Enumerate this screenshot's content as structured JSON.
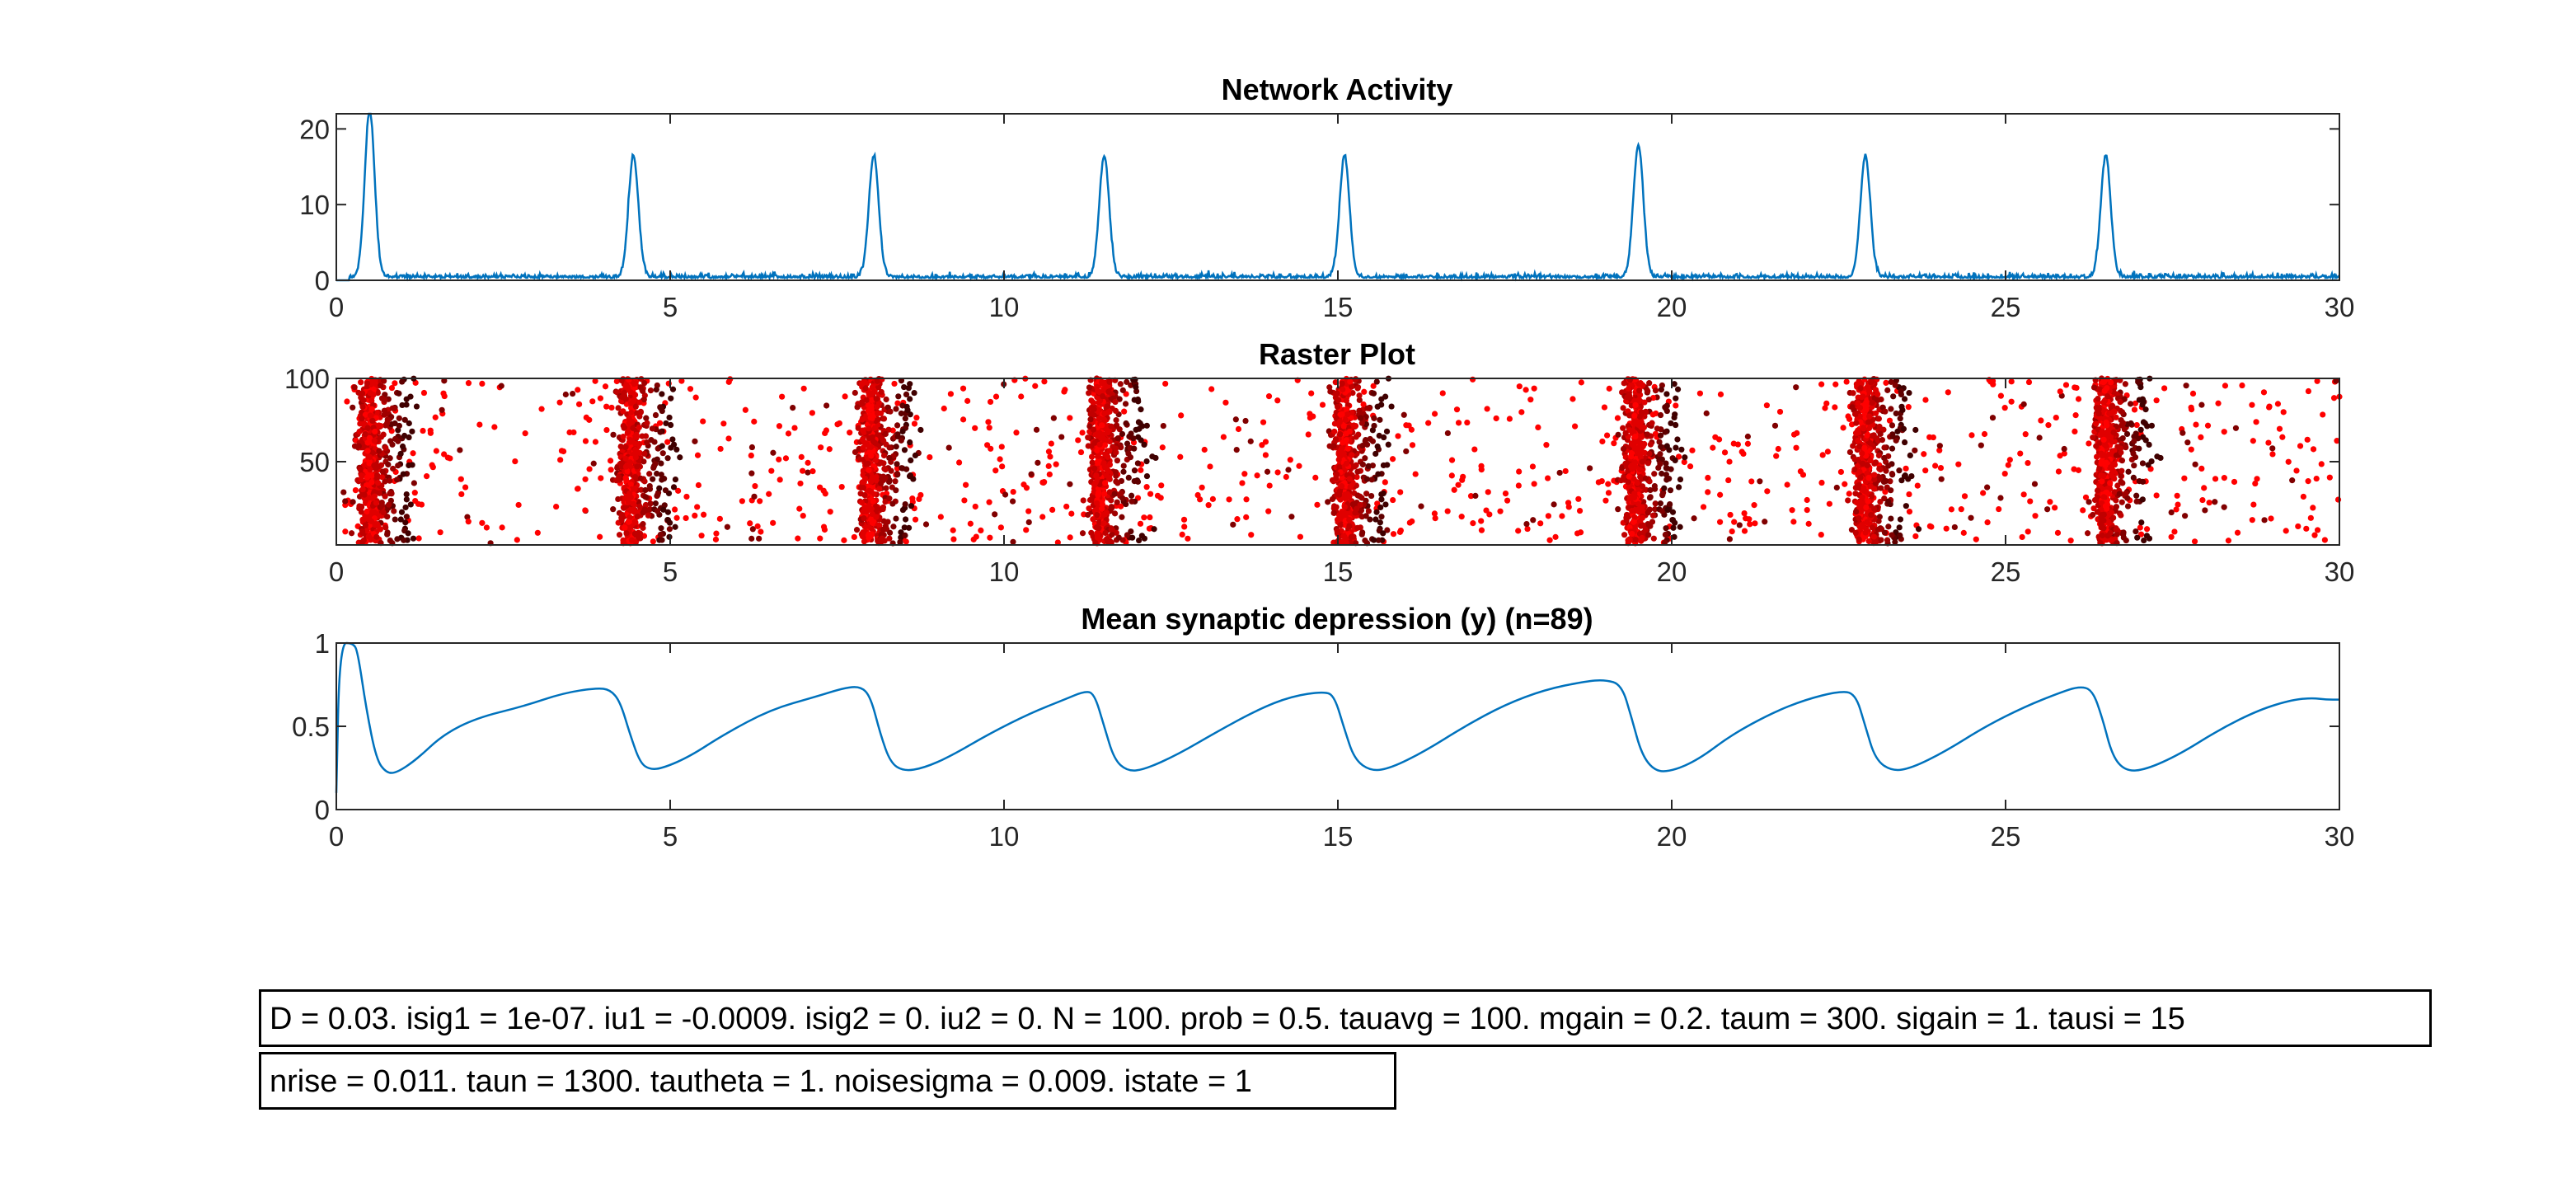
{
  "chart_data": [
    {
      "id": "activity",
      "type": "line",
      "title": "Network Activity",
      "xlim": [
        0,
        30
      ],
      "ylim": [
        0,
        22
      ],
      "xticks": [
        "0",
        "5",
        "10",
        "15",
        "20",
        "25",
        "30"
      ],
      "yticks": [
        "0",
        "10",
        "20"
      ],
      "color": "#0072BD",
      "baseline": 0.3,
      "peak_width": 0.25,
      "peaks": [
        {
          "t": 0.5,
          "height": 22
        },
        {
          "t": 4.45,
          "height": 16
        },
        {
          "t": 8.05,
          "height": 16
        },
        {
          "t": 11.5,
          "height": 16
        },
        {
          "t": 15.1,
          "height": 16
        },
        {
          "t": 19.5,
          "height": 17.5
        },
        {
          "t": 22.9,
          "height": 16
        },
        {
          "t": 26.5,
          "height": 16
        }
      ]
    },
    {
      "id": "raster",
      "type": "scatter",
      "title": "Raster Plot",
      "xlim": [
        0,
        30
      ],
      "ylim": [
        0,
        100
      ],
      "xticks": [
        "0",
        "5",
        "10",
        "15",
        "20",
        "25",
        "30"
      ],
      "yticks": [
        "50",
        "100"
      ],
      "burst_times": [
        0.5,
        4.4,
        8.0,
        11.45,
        15.1,
        19.45,
        22.9,
        26.5
      ],
      "burst_width": 0.5,
      "neurons": 100,
      "colors": [
        "#ff0000",
        "#e00000",
        "#c00000",
        "#a00000",
        "#800000",
        "#600000",
        "#400000"
      ]
    },
    {
      "id": "depression",
      "type": "line",
      "title": "Mean synaptic depression (y) (n=89)",
      "xlim": [
        0,
        30
      ],
      "ylim": [
        0,
        1
      ],
      "xticks": [
        "0",
        "5",
        "10",
        "15",
        "20",
        "25",
        "30"
      ],
      "yticks": [
        "0",
        "0.5",
        "1"
      ],
      "color": "#0072BD",
      "points": [
        [
          0,
          0.1
        ],
        [
          0.05,
          1.0
        ],
        [
          0.25,
          1.0
        ],
        [
          0.32,
          0.95
        ],
        [
          0.45,
          0.6
        ],
        [
          0.6,
          0.3
        ],
        [
          0.75,
          0.22
        ],
        [
          0.9,
          0.22
        ],
        [
          1.2,
          0.3
        ],
        [
          1.6,
          0.45
        ],
        [
          2.1,
          0.55
        ],
        [
          2.8,
          0.62
        ],
        [
          3.4,
          0.7
        ],
        [
          3.9,
          0.73
        ],
        [
          4.1,
          0.72
        ],
        [
          4.25,
          0.65
        ],
        [
          4.4,
          0.45
        ],
        [
          4.55,
          0.28
        ],
        [
          4.7,
          0.24
        ],
        [
          4.9,
          0.25
        ],
        [
          5.3,
          0.32
        ],
        [
          5.8,
          0.45
        ],
        [
          6.5,
          0.6
        ],
        [
          7.2,
          0.68
        ],
        [
          7.6,
          0.73
        ],
        [
          7.85,
          0.74
        ],
        [
          8.0,
          0.68
        ],
        [
          8.15,
          0.45
        ],
        [
          8.3,
          0.28
        ],
        [
          8.5,
          0.23
        ],
        [
          8.8,
          0.25
        ],
        [
          9.2,
          0.32
        ],
        [
          9.8,
          0.46
        ],
        [
          10.4,
          0.58
        ],
        [
          10.9,
          0.66
        ],
        [
          11.2,
          0.71
        ],
        [
          11.35,
          0.7
        ],
        [
          11.5,
          0.5
        ],
        [
          11.65,
          0.3
        ],
        [
          11.85,
          0.23
        ],
        [
          12.1,
          0.24
        ],
        [
          12.6,
          0.33
        ],
        [
          13.2,
          0.47
        ],
        [
          13.8,
          0.6
        ],
        [
          14.3,
          0.68
        ],
        [
          14.8,
          0.71
        ],
        [
          14.95,
          0.68
        ],
        [
          15.1,
          0.48
        ],
        [
          15.25,
          0.3
        ],
        [
          15.5,
          0.23
        ],
        [
          15.8,
          0.25
        ],
        [
          16.3,
          0.35
        ],
        [
          16.9,
          0.5
        ],
        [
          17.5,
          0.63
        ],
        [
          18.1,
          0.72
        ],
        [
          18.7,
          0.77
        ],
        [
          19.0,
          0.78
        ],
        [
          19.25,
          0.75
        ],
        [
          19.4,
          0.55
        ],
        [
          19.55,
          0.33
        ],
        [
          19.75,
          0.23
        ],
        [
          20.0,
          0.23
        ],
        [
          20.4,
          0.3
        ],
        [
          20.9,
          0.45
        ],
        [
          21.5,
          0.58
        ],
        [
          22.0,
          0.66
        ],
        [
          22.5,
          0.71
        ],
        [
          22.75,
          0.7
        ],
        [
          22.9,
          0.5
        ],
        [
          23.05,
          0.3
        ],
        [
          23.3,
          0.23
        ],
        [
          23.6,
          0.25
        ],
        [
          24.1,
          0.35
        ],
        [
          24.7,
          0.5
        ],
        [
          25.3,
          0.62
        ],
        [
          25.8,
          0.7
        ],
        [
          26.1,
          0.74
        ],
        [
          26.3,
          0.72
        ],
        [
          26.45,
          0.55
        ],
        [
          26.6,
          0.32
        ],
        [
          26.8,
          0.23
        ],
        [
          27.1,
          0.24
        ],
        [
          27.6,
          0.33
        ],
        [
          28.2,
          0.48
        ],
        [
          28.8,
          0.6
        ],
        [
          29.3,
          0.66
        ],
        [
          29.6,
          0.67
        ],
        [
          29.8,
          0.66
        ],
        [
          30,
          0.66
        ]
      ]
    }
  ],
  "params": {
    "line1": "D = 0.03. isig1 = 1e-07. iu1 = -0.0009. isig2 = 0. iu2 = 0. N = 100. prob = 0.5. tauavg = 100. mgain = 0.2. taum = 300. sigain = 1. tausi = 15",
    "line2": "nrise = 0.011. taun = 1300. tautheta = 1. noisesigma = 0.009. istate = 1"
  }
}
